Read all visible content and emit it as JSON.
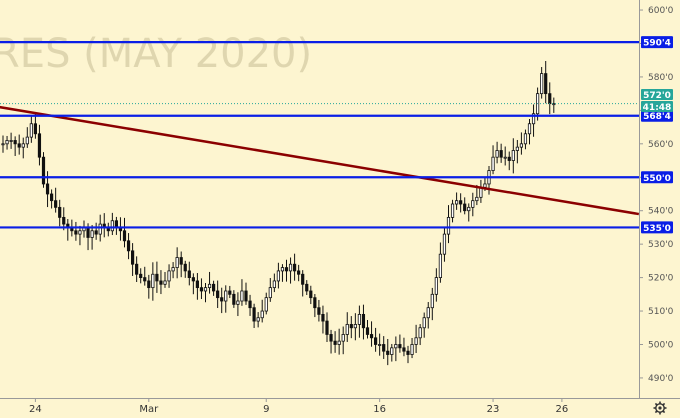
{
  "watermark": "RES (MAY 2020)",
  "price_badge": {
    "value": "572'0",
    "countdown": "41:48",
    "color": "#26a69a"
  },
  "gear_icon": "gear-icon",
  "colors": {
    "background": "#fdf5d0",
    "level": "#0a1ee6",
    "trend": "#8b0000",
    "candle": "#111111"
  },
  "chart_data": {
    "type": "candlestick",
    "title": "",
    "xlabel": "",
    "ylabel": "",
    "ylim": [
      484,
      603
    ],
    "grid": false,
    "y_ticks": [
      "490'0",
      "500'0",
      "510'0",
      "520'0",
      "530'0",
      "540'0",
      "550'0",
      "560'0",
      "570'0",
      "580'0",
      "590'0",
      "600'0"
    ],
    "y_tick_values": [
      490,
      500,
      510,
      520,
      530,
      540,
      550,
      560,
      570,
      580,
      590,
      600
    ],
    "x_ticks": [
      {
        "label": "24",
        "index": 8
      },
      {
        "label": "Mar",
        "index": 36
      },
      {
        "label": "9",
        "index": 65
      },
      {
        "label": "16",
        "index": 93
      },
      {
        "label": "23",
        "index": 121
      },
      {
        "label": "26",
        "index": 138
      }
    ],
    "horizontal_levels": [
      {
        "label": "590'4",
        "value": 590.4
      },
      {
        "label": "568'4",
        "value": 568.4
      },
      {
        "label": "550'0",
        "value": 550.0
      },
      {
        "label": "535'0",
        "value": 535.0
      }
    ],
    "trend_line": {
      "start": {
        "index": -1,
        "value": 571
      },
      "end": {
        "index": 157,
        "value": 539
      }
    },
    "last_price": 572.0,
    "series": [
      {
        "values": [
          560,
          561,
          561,
          560,
          559,
          560,
          562,
          566,
          563,
          556,
          548,
          545,
          543,
          541,
          538,
          536,
          535,
          534,
          533,
          534,
          535,
          532,
          534,
          533,
          536,
          535,
          534,
          537,
          535,
          534,
          531,
          528,
          524,
          521,
          520,
          519,
          517,
          521,
          519,
          518,
          519,
          522,
          523,
          526,
          524,
          522,
          520,
          519,
          517,
          516,
          517,
          518,
          516,
          514,
          513,
          516,
          515,
          512,
          513,
          516,
          513,
          511,
          507,
          508,
          510,
          514,
          517,
          519,
          522,
          523,
          522,
          524,
          522,
          521,
          518,
          516,
          514,
          511,
          509,
          507,
          503,
          501,
          500,
          501,
          503,
          506,
          505,
          506,
          509,
          505,
          503,
          502,
          500,
          500,
          498,
          497,
          499,
          500,
          499,
          498,
          497,
          500,
          502,
          505,
          508,
          511,
          515,
          520,
          527,
          533,
          538,
          542,
          543,
          542,
          540,
          541,
          543,
          544,
          547,
          548,
          552,
          556,
          558,
          556,
          556,
          555,
          558,
          559,
          560,
          563,
          566,
          569,
          575,
          581,
          575,
          572,
          572
        ]
      }
    ]
  }
}
